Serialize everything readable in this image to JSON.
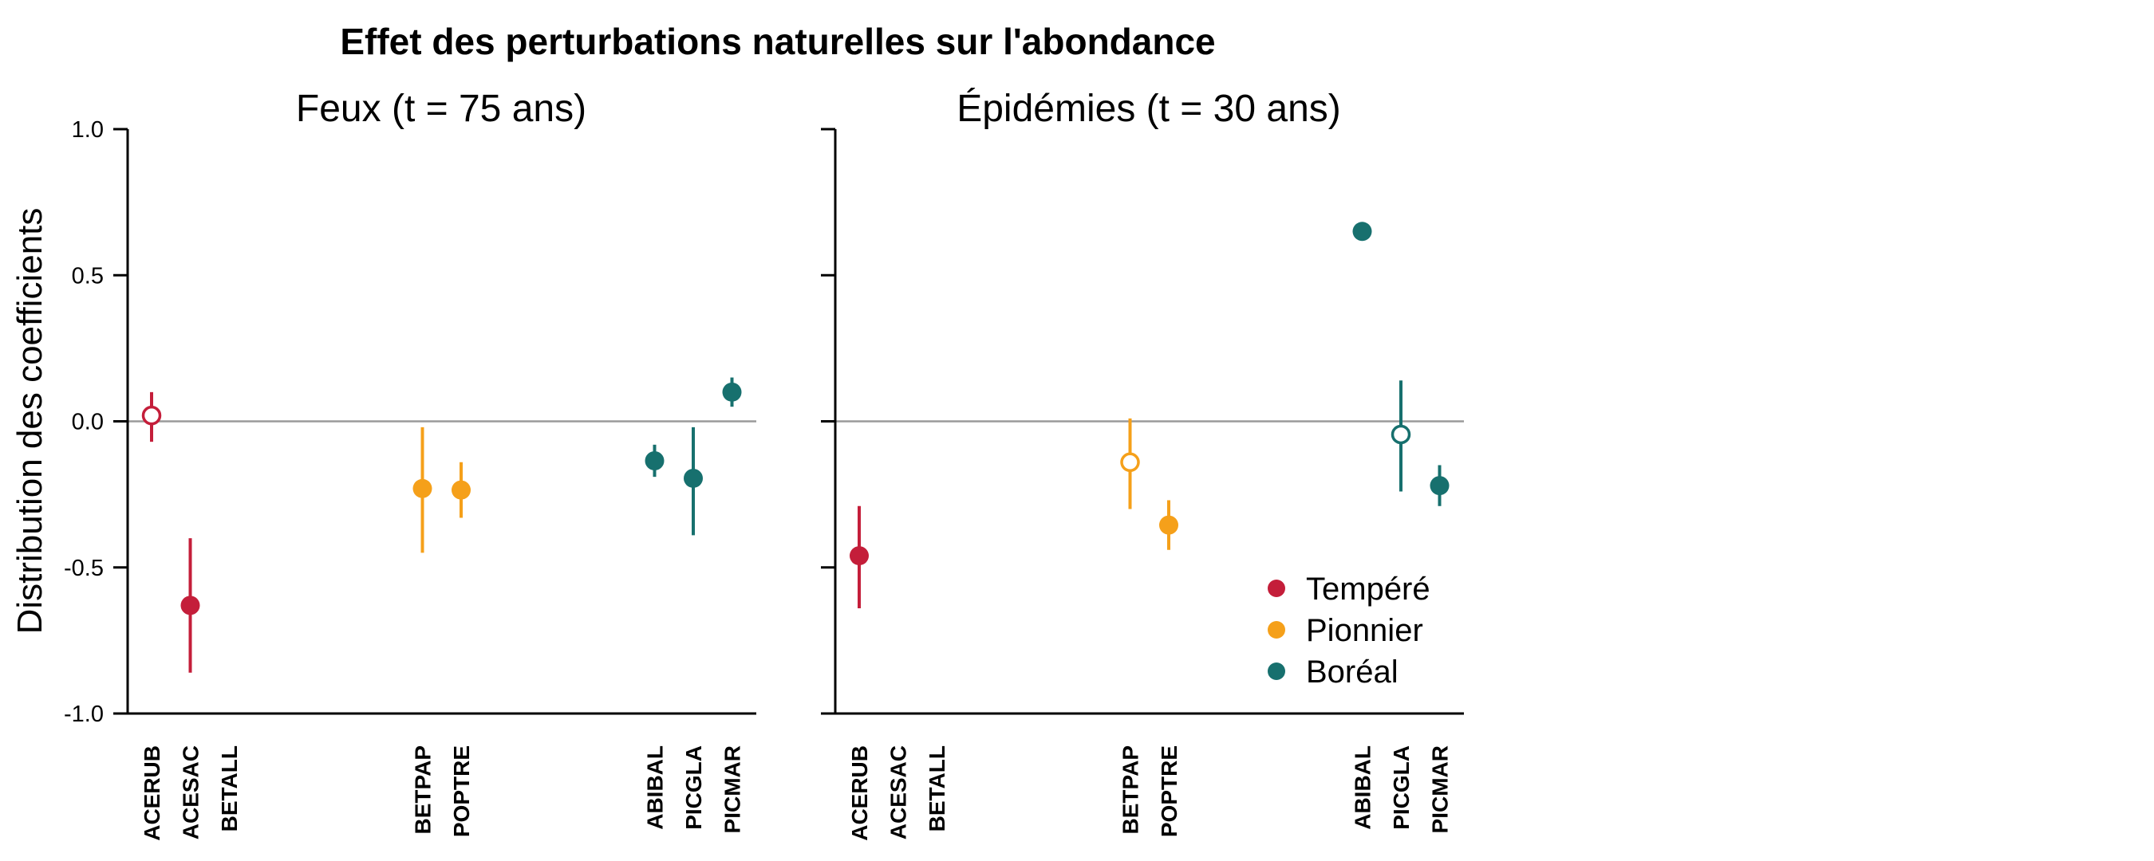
{
  "chart_data": {
    "type": "scatter",
    "title": "Effet des perturbations naturelles sur l'abondance",
    "ylabel": "Distribution des coefficients",
    "ylim": [
      -1.0,
      1.0
    ],
    "yticks": [
      "1.0",
      "0.5",
      "0.0",
      "-0.5",
      "-1.0"
    ],
    "ytick_values": [
      1.0,
      0.5,
      0.0,
      -0.5,
      -1.0
    ],
    "categories": [
      "ACERUB",
      "ACESAC",
      "BETALL",
      "BETPAP",
      "POPTRE",
      "ABIBAL",
      "PICGLA",
      "PICMAR"
    ],
    "reference_line": 0.0,
    "legend_position": "bottom-right",
    "legend": [
      {
        "label": "Tempéré",
        "color": "#C41E3A"
      },
      {
        "label": "Pionnier",
        "color": "#F5A01A"
      },
      {
        "label": "Boréal",
        "color": "#17706E"
      }
    ],
    "panels": [
      {
        "title": "Feux (t = 75 ans)",
        "points": [
          {
            "species": "ACERUB",
            "group": "Tempéré",
            "estimate": 0.02,
            "low": -0.07,
            "high": 0.1,
            "significant": false
          },
          {
            "species": "ACESAC",
            "group": "Tempéré",
            "estimate": -0.63,
            "low": -0.86,
            "high": -0.4,
            "significant": true
          },
          {
            "species": "BETPAP",
            "group": "Pionnier",
            "estimate": -0.23,
            "low": -0.45,
            "high": -0.02,
            "significant": true
          },
          {
            "species": "POPTRE",
            "group": "Pionnier",
            "estimate": -0.235,
            "low": -0.33,
            "high": -0.14,
            "significant": true
          },
          {
            "species": "ABIBAL",
            "group": "Boréal",
            "estimate": -0.135,
            "low": -0.19,
            "high": -0.08,
            "significant": true
          },
          {
            "species": "PICGLA",
            "group": "Boréal",
            "estimate": -0.195,
            "low": -0.39,
            "high": -0.02,
            "significant": true
          },
          {
            "species": "PICMAR",
            "group": "Boréal",
            "estimate": 0.1,
            "low": 0.05,
            "high": 0.15,
            "significant": true
          }
        ]
      },
      {
        "title": "Épidémies (t = 30 ans)",
        "points": [
          {
            "species": "ACERUB",
            "group": "Tempéré",
            "estimate": -0.46,
            "low": -0.64,
            "high": -0.29,
            "significant": true
          },
          {
            "species": "BETPAP",
            "group": "Pionnier",
            "estimate": -0.14,
            "low": -0.3,
            "high": 0.01,
            "significant": false
          },
          {
            "species": "POPTRE",
            "group": "Pionnier",
            "estimate": -0.355,
            "low": -0.44,
            "high": -0.27,
            "significant": true
          },
          {
            "species": "ABIBAL",
            "group": "Boréal",
            "estimate": 0.65,
            "low": 0.64,
            "high": 0.66,
            "significant": true
          },
          {
            "species": "PICGLA",
            "group": "Boréal",
            "estimate": -0.045,
            "low": -0.24,
            "high": 0.14,
            "significant": false
          },
          {
            "species": "PICMAR",
            "group": "Boréal",
            "estimate": -0.22,
            "low": -0.29,
            "high": -0.15,
            "significant": true
          }
        ]
      }
    ]
  }
}
